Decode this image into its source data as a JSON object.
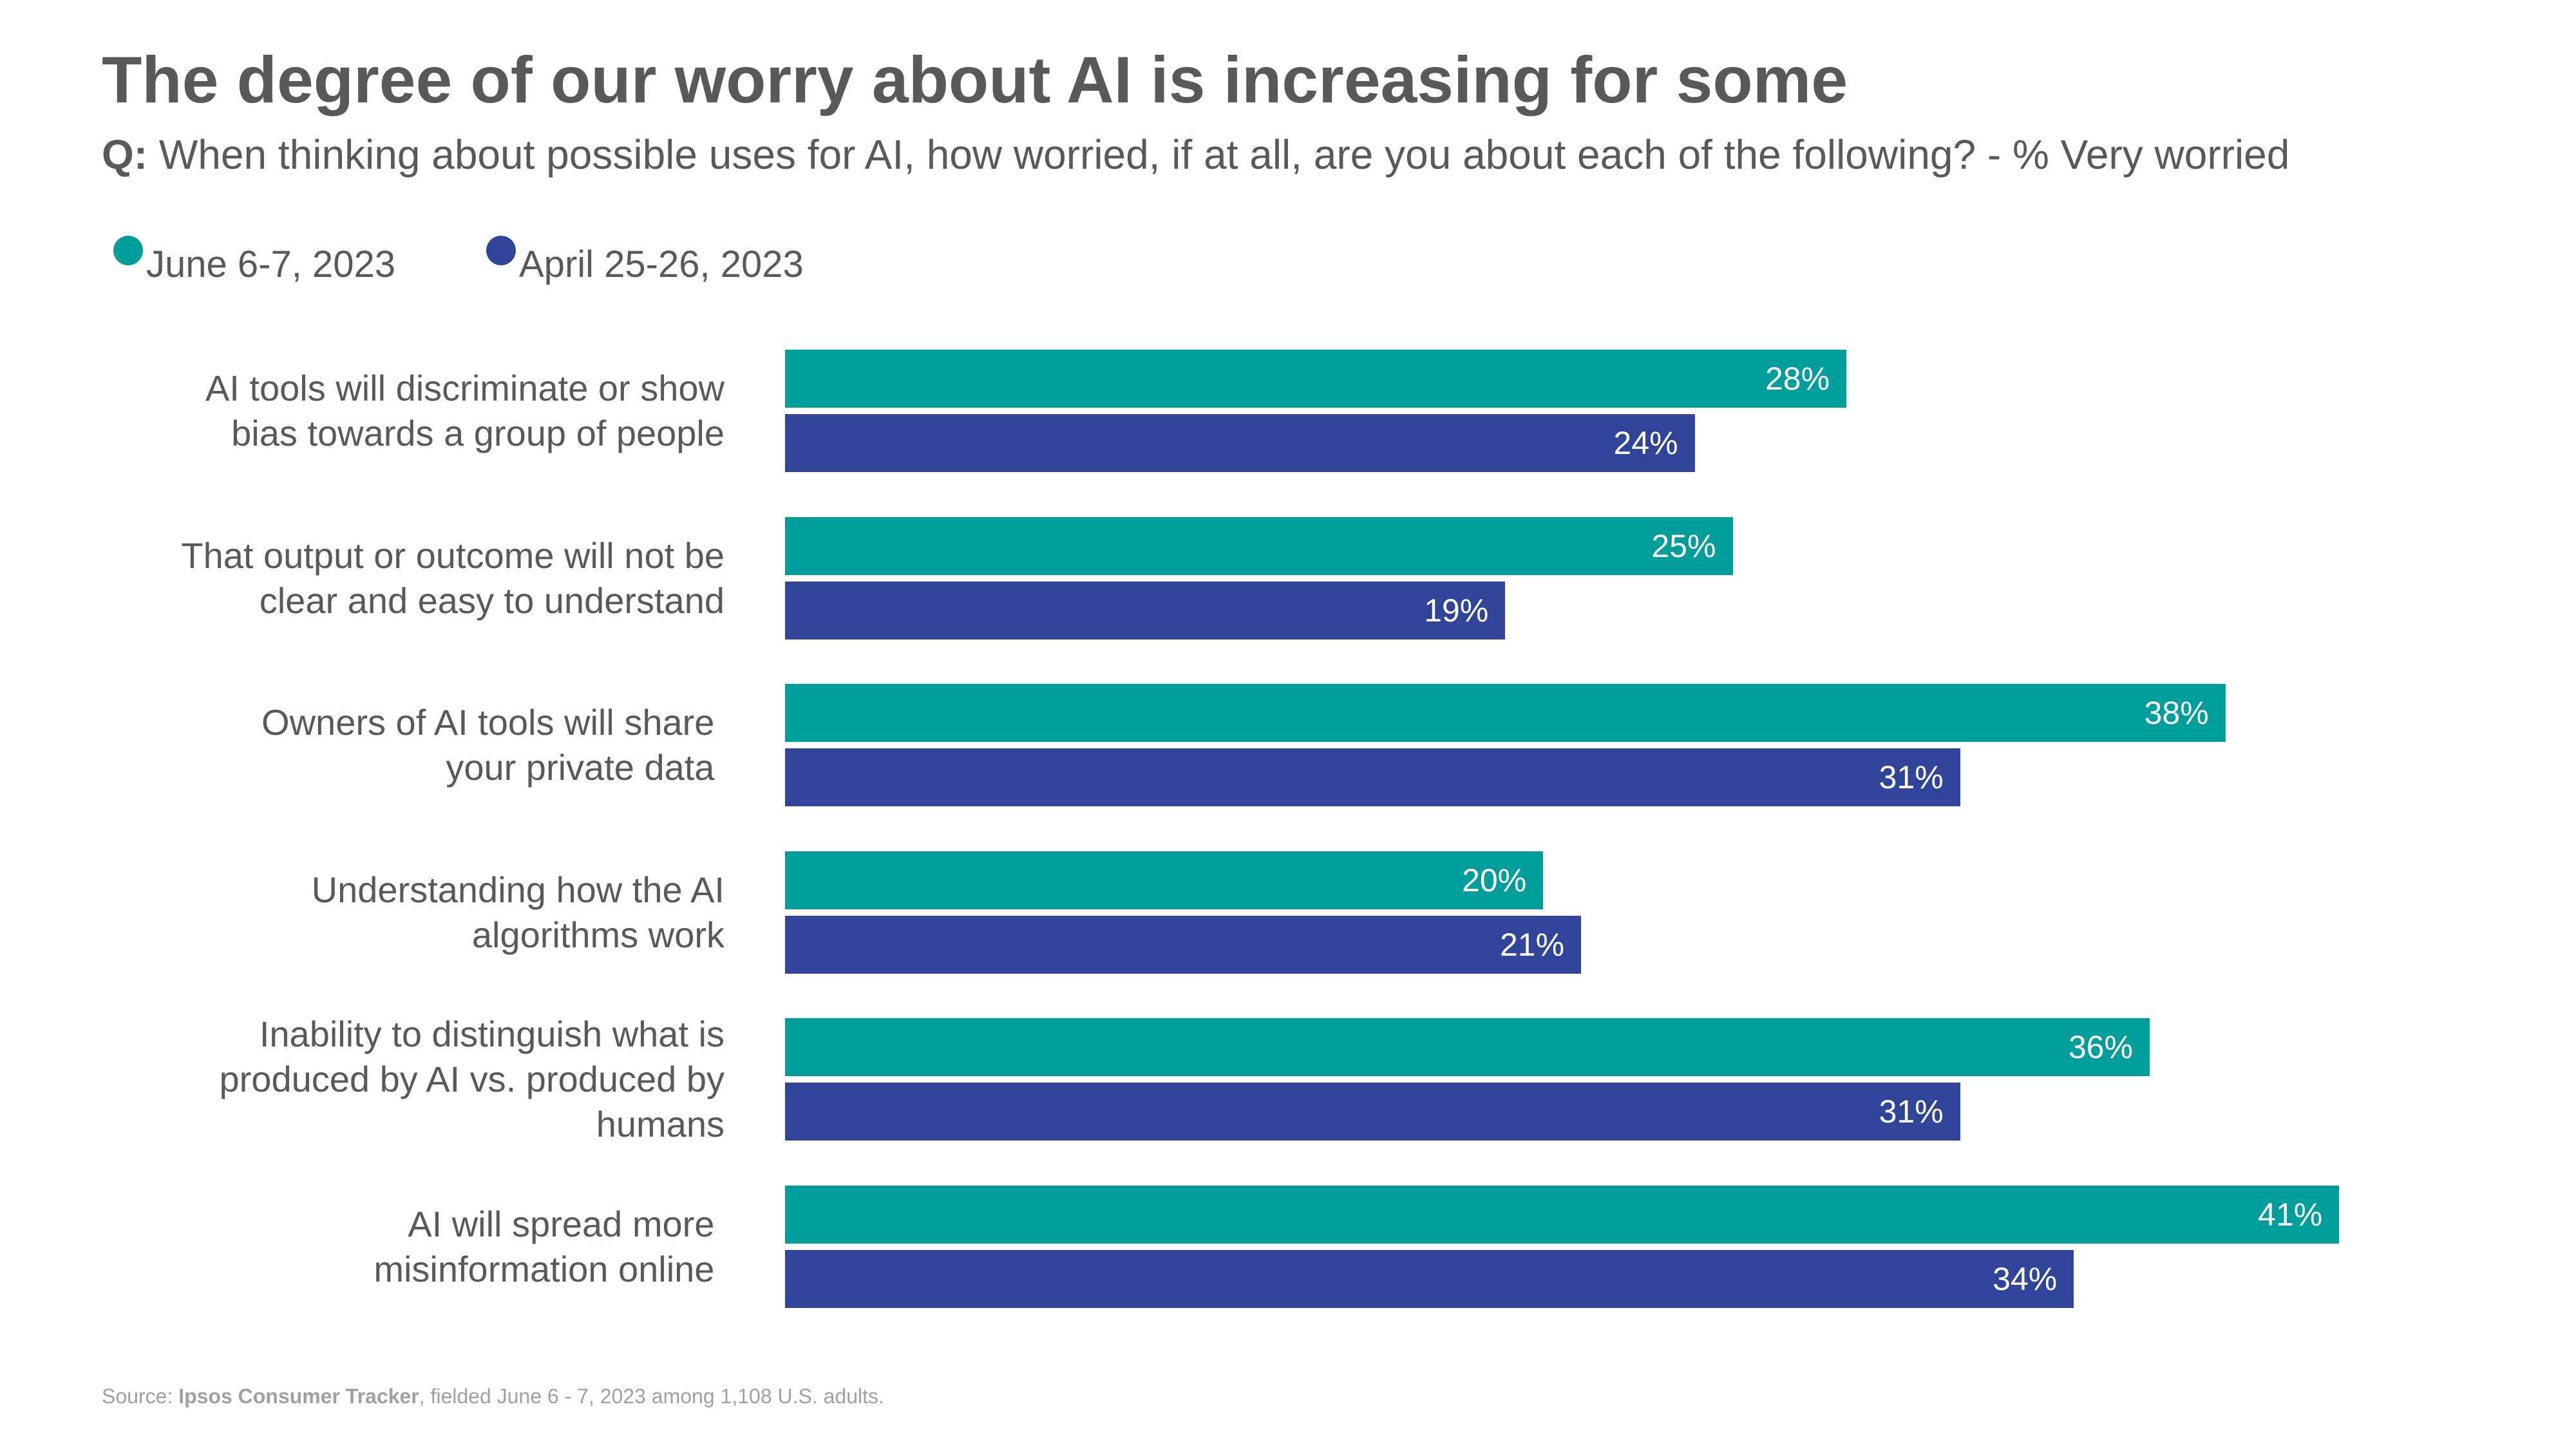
{
  "title": "The degree of our worry about AI is increasing for some",
  "subtitle": {
    "prefix": "Q:",
    "text": "When thinking about possible uses for AI, how worried, if at all, are you about each of the following?  - % Very worried"
  },
  "source": {
    "prefix": "Source: ",
    "name": "Ipsos Consumer Tracker",
    "suffix": ", fielded June 6 - 7, 2023 among 1,108 U.S. adults."
  },
  "chart_data": {
    "type": "bar",
    "orientation": "horizontal",
    "legend_position": "top-left",
    "grid": false,
    "xlim": [
      0,
      45
    ],
    "categories": [
      [
        "AI tools will discriminate or show",
        "bias towards a group of people"
      ],
      [
        "That output or outcome will not be",
        "clear and easy to understand"
      ],
      [
        "Owners of AI tools will share ",
        "your private data "
      ],
      [
        "Understanding how the AI",
        "algorithms work"
      ],
      [
        "Inability to distinguish what is",
        "produced by AI vs. produced by",
        "humans"
      ],
      [
        "AI will spread more ",
        "misinformation online "
      ]
    ],
    "series": [
      {
        "name": "June 6-7, 2023",
        "color": "#009E9A",
        "values": [
          28,
          25,
          38,
          20,
          36,
          41
        ],
        "labels": [
          "28%",
          "25%",
          "38%",
          "20%",
          "36%",
          "41%"
        ]
      },
      {
        "name": "April 25-26, 2023",
        "color": "#30459A",
        "values": [
          24,
          19,
          31,
          21,
          31,
          34
        ],
        "labels": [
          "24%",
          "19%",
          "31%",
          "21%",
          "31%",
          "34%"
        ]
      }
    ]
  }
}
